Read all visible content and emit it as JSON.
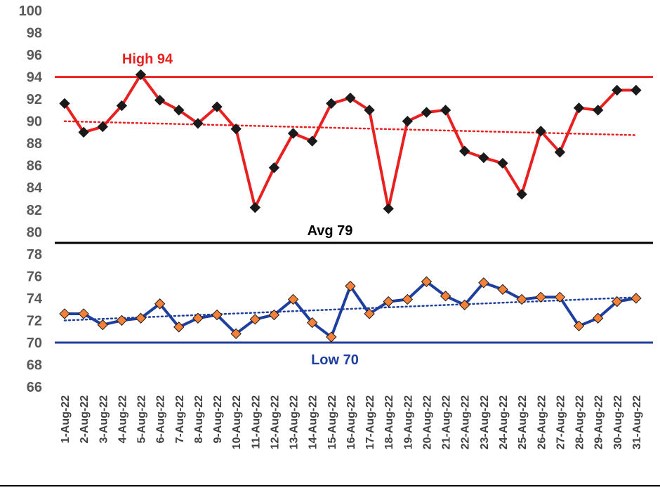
{
  "chart_data": {
    "type": "line",
    "categories": [
      "1-Aug-22",
      "2-Aug-22",
      "3-Aug-22",
      "4-Aug-22",
      "5-Aug-22",
      "6-Aug-22",
      "7-Aug-22",
      "8-Aug-22",
      "9-Aug-22",
      "10-Aug-22",
      "11-Aug-22",
      "12-Aug-22",
      "13-Aug-22",
      "14-Aug-22",
      "15-Aug-22",
      "16-Aug-22",
      "17-Aug-22",
      "18-Aug-22",
      "19-Aug-22",
      "20-Aug-22",
      "21-Aug-22",
      "22-Aug-22",
      "23-Aug-22",
      "24-Aug-22",
      "25-Aug-22",
      "26-Aug-22",
      "27-Aug-22",
      "28-Aug-22",
      "29-Aug-22",
      "30-Aug-22",
      "31-Aug-22"
    ],
    "series": [
      {
        "color": "#e8201f",
        "marker_color": "#1a1a1a",
        "trendline": true,
        "values": [
          91.6,
          89.0,
          89.5,
          91.4,
          94.2,
          91.9,
          91.0,
          89.8,
          91.3,
          89.3,
          82.2,
          85.8,
          88.9,
          88.2,
          91.6,
          92.1,
          91.0,
          82.1,
          90.0,
          90.8,
          91.0,
          87.3,
          86.7,
          86.2,
          83.4,
          89.1,
          87.2,
          91.2,
          91.0,
          92.8,
          92.8
        ]
      },
      {
        "color": "#1f3f9f",
        "marker_color": "#f4813a",
        "trendline": true,
        "values": [
          72.6,
          72.6,
          71.6,
          72.0,
          72.2,
          73.5,
          71.4,
          72.2,
          72.5,
          70.8,
          72.1,
          72.5,
          73.9,
          71.8,
          70.5,
          75.1,
          72.6,
          73.7,
          73.9,
          75.5,
          74.2,
          73.4,
          75.4,
          74.8,
          73.9,
          74.1,
          74.1,
          71.5,
          72.2,
          73.7,
          74.0
        ]
      }
    ],
    "reference_lines": [
      {
        "label": "High 94",
        "value": 94,
        "color": "#e8201f"
      },
      {
        "label": "Avg 79",
        "value": 79,
        "color": "#000000"
      },
      {
        "label": "Low 70",
        "value": 70,
        "color": "#1f3f9f"
      }
    ],
    "ylim": [
      66,
      100
    ],
    "yticks": [
      66,
      68,
      70,
      72,
      74,
      76,
      78,
      80,
      82,
      84,
      86,
      88,
      90,
      92,
      94,
      96,
      98,
      100
    ],
    "grid": false
  }
}
